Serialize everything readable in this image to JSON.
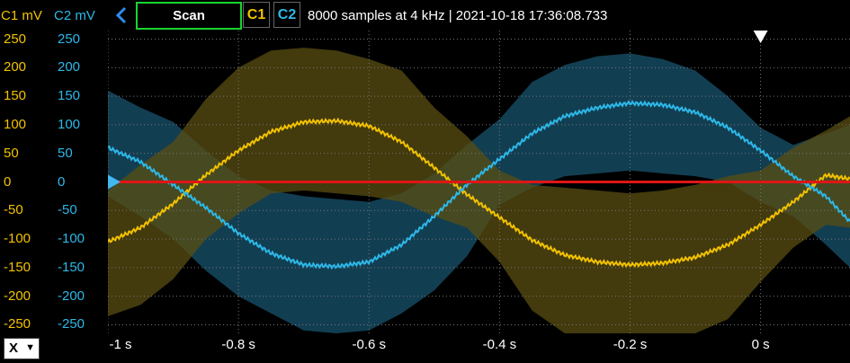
{
  "toolbar": {
    "c1_unit": "C1 mV",
    "c2_unit": "C2 mV",
    "scan_label": "Scan",
    "c1_label": "C1",
    "c2_label": "C2",
    "capture_info": "8000 samples at 4 kHz | 2021-10-18 17:36:08.733"
  },
  "x_button": {
    "label": "X"
  },
  "colors": {
    "c1": "#f2c200",
    "c2": "#2db8e8",
    "c1_envelope": "#5a4d12",
    "c2_envelope": "#123e52",
    "reference": "#e01515",
    "scan_border": "#17d52f"
  },
  "chart_data": {
    "type": "line",
    "x_ticks": [
      "-1 s",
      "-0.8 s",
      "-0.6 s",
      "-0.4 s",
      "-0.2 s",
      "0 s"
    ],
    "x_tick_values": [
      -1,
      -0.8,
      -0.6,
      -0.4,
      -0.2,
      0
    ],
    "xlim": [
      -1,
      0.137
    ],
    "c1_ticks": [
      "250",
      "200",
      "150",
      "100",
      "50",
      "0",
      "-50",
      "-100",
      "-150",
      "-200",
      "-250"
    ],
    "c2_ticks": [
      "250",
      "200",
      "150",
      "100",
      "50",
      "0",
      "-50",
      "-100",
      "-150",
      "-200",
      "-250"
    ],
    "tick_values": [
      250,
      200,
      150,
      100,
      50,
      0,
      -50,
      -100,
      -150,
      -200,
      -250
    ],
    "ylim": [
      -265,
      265
    ],
    "grid": true,
    "series": [
      {
        "name": "C1",
        "x": [
          -1,
          -0.95,
          -0.9,
          -0.85,
          -0.8,
          -0.75,
          -0.7,
          -0.65,
          -0.6,
          -0.55,
          -0.5,
          -0.45,
          -0.4,
          -0.35,
          -0.3,
          -0.25,
          -0.2,
          -0.15,
          -0.1,
          -0.05,
          0,
          0.05,
          0.1,
          0.137
        ],
        "y": [
          -105,
          -80,
          -38,
          12,
          55,
          88,
          105,
          107,
          98,
          70,
          25,
          -22,
          -62,
          -102,
          -128,
          -140,
          -145,
          -142,
          -132,
          -110,
          -75,
          -35,
          12,
          5
        ],
        "envelope_upper": [
          -15,
          30,
          70,
          145,
          200,
          230,
          235,
          230,
          215,
          195,
          130,
          80,
          20,
          -5,
          -10,
          -15,
          -20,
          -15,
          -5,
          10,
          20,
          60,
          90,
          115
        ],
        "envelope_lower": [
          -235,
          -215,
          -170,
          -100,
          -55,
          -20,
          -15,
          -20,
          -25,
          -35,
          -60,
          -80,
          -140,
          -225,
          -265,
          -265,
          -265,
          -265,
          -265,
          -240,
          -175,
          -115,
          -75,
          -80
        ]
      },
      {
        "name": "C2",
        "x": [
          -1,
          -0.95,
          -0.9,
          -0.85,
          -0.8,
          -0.75,
          -0.7,
          -0.65,
          -0.6,
          -0.55,
          -0.5,
          -0.45,
          -0.4,
          -0.35,
          -0.3,
          -0.25,
          -0.2,
          -0.15,
          -0.1,
          -0.05,
          0,
          0.05,
          0.1,
          0.137
        ],
        "y": [
          60,
          35,
          -5,
          -45,
          -90,
          -125,
          -145,
          -148,
          -140,
          -110,
          -60,
          -5,
          40,
          85,
          115,
          130,
          138,
          135,
          122,
          95,
          55,
          10,
          -25,
          -70
        ],
        "envelope_upper": [
          160,
          130,
          105,
          55,
          10,
          -15,
          -25,
          -30,
          -35,
          -20,
          15,
          65,
          110,
          175,
          205,
          220,
          225,
          215,
          195,
          150,
          95,
          65,
          85,
          100
        ],
        "envelope_lower": [
          -25,
          -60,
          -100,
          -155,
          -200,
          -230,
          -260,
          -265,
          -260,
          -230,
          -190,
          -130,
          -40,
          -10,
          10,
          15,
          20,
          15,
          10,
          0,
          -35,
          -60,
          -110,
          -150
        ]
      }
    ],
    "reference_level": 0,
    "trigger_time": 0
  }
}
